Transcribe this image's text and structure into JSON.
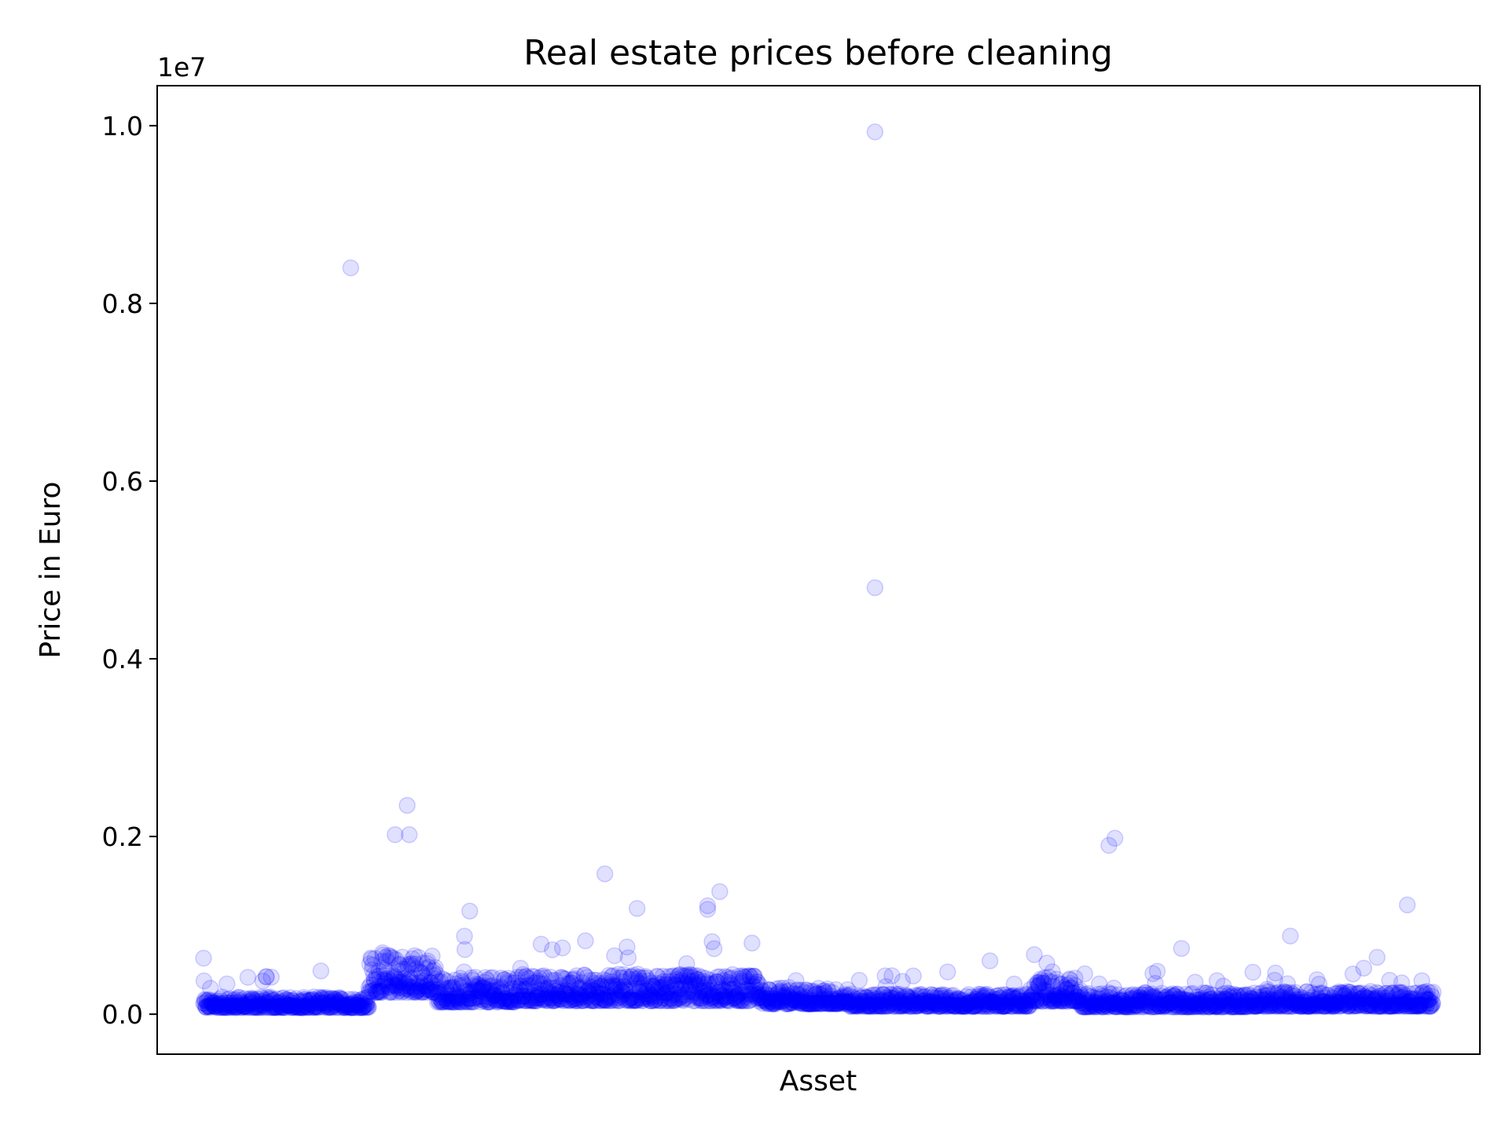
{
  "chart_data": {
    "type": "scatter",
    "title": "Real estate prices before cleaning",
    "xlabel": "Asset",
    "ylabel": "Price in Euro",
    "y_offset_label": "1e7",
    "y_scale_multiplier": 10000000,
    "xlim": [
      -230,
      6330
    ],
    "ylim": [
      -450000,
      10450000
    ],
    "y_ticks": [
      0.0,
      0.2,
      0.4,
      0.6,
      0.8,
      1.0
    ],
    "y_tick_labels": [
      "0.0",
      "0.2",
      "0.4",
      "0.6",
      "0.8",
      "1.0"
    ],
    "x_ticks": [],
    "grid": false,
    "marker_color": "#0000ff",
    "marker_alpha": 0.12,
    "series": [
      {
        "values_description": "prices of roughly 6100 assets indexed 0..6099",
        "outliers": [
          {
            "x": 730,
            "y": 8400000
          },
          {
            "x": 3330,
            "y": 9930000
          },
          {
            "x": 3330,
            "y": 4800000
          },
          {
            "x": 4490,
            "y": 1900000
          },
          {
            "x": 4520,
            "y": 1980000
          },
          {
            "x": 1010,
            "y": 2350000
          },
          {
            "x": 950,
            "y": 2020000
          },
          {
            "x": 1020,
            "y": 2020000
          },
          {
            "x": 1990,
            "y": 1580000
          },
          {
            "x": 2560,
            "y": 1380000
          },
          {
            "x": 2500,
            "y": 1220000
          },
          {
            "x": 2500,
            "y": 1180000
          },
          {
            "x": 2150,
            "y": 1190000
          },
          {
            "x": 1320,
            "y": 1160000
          },
          {
            "x": 5970,
            "y": 1230000
          },
          {
            "x": 5390,
            "y": 880000
          },
          {
            "x": 0,
            "y": 630000
          },
          {
            "x": 3900,
            "y": 600000
          },
          {
            "x": 4850,
            "y": 740000
          },
          {
            "x": 5820,
            "y": 640000
          }
        ],
        "bands": [
          {
            "x0": 0,
            "x1": 820,
            "median": 110000,
            "spread": 120000,
            "max": 500000
          },
          {
            "x0": 820,
            "x1": 1160,
            "median": 380000,
            "spread": 450000,
            "max": 1700000
          },
          {
            "x0": 1160,
            "x1": 1550,
            "median": 220000,
            "spread": 280000,
            "max": 900000
          },
          {
            "x0": 1550,
            "x1": 2750,
            "median": 240000,
            "spread": 300000,
            "max": 900000
          },
          {
            "x0": 2750,
            "x1": 3200,
            "median": 170000,
            "spread": 180000,
            "max": 450000
          },
          {
            "x0": 3200,
            "x1": 4100,
            "median": 130000,
            "spread": 140000,
            "max": 500000
          },
          {
            "x0": 4100,
            "x1": 4350,
            "median": 230000,
            "spread": 280000,
            "max": 700000
          },
          {
            "x0": 4350,
            "x1": 5200,
            "median": 130000,
            "spread": 160000,
            "max": 500000
          },
          {
            "x0": 5200,
            "x1": 6100,
            "median": 140000,
            "spread": 170000,
            "max": 550000
          }
        ]
      }
    ]
  }
}
